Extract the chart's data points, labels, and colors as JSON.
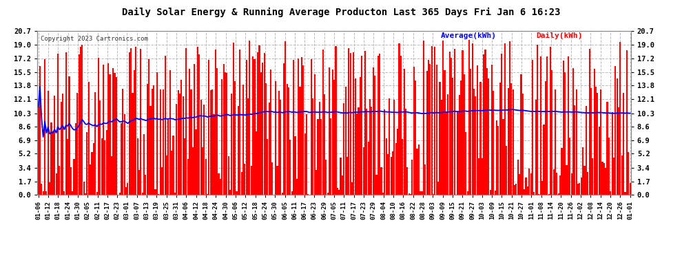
{
  "title": "Daily Solar Energy & Running Average Producton Last 365 Days Fri Jan 6 16:23",
  "copyright": "Copyright 2023 Cartronics.com",
  "legend_avg": "Average(kWh)",
  "legend_daily": "Daily(kWh)",
  "yticks": [
    0.0,
    1.7,
    3.4,
    5.2,
    6.9,
    8.6,
    10.3,
    12.1,
    13.8,
    15.5,
    17.2,
    19.0,
    20.7
  ],
  "ymax": 20.7,
  "ymin": 0.0,
  "bar_color": "#ff0000",
  "avg_color": "#0000ff",
  "bg_color": "#ffffff",
  "grid_color": "#bbbbbb",
  "title_color": "#000000",
  "xtick_labels": [
    "01-06",
    "01-12",
    "01-18",
    "01-24",
    "01-30",
    "02-05",
    "02-11",
    "02-17",
    "02-23",
    "03-01",
    "03-07",
    "03-13",
    "03-19",
    "03-25",
    "03-31",
    "04-06",
    "04-12",
    "04-18",
    "04-24",
    "04-30",
    "05-06",
    "05-12",
    "05-18",
    "05-24",
    "05-30",
    "06-05",
    "06-11",
    "06-17",
    "06-23",
    "06-29",
    "07-05",
    "07-11",
    "07-17",
    "07-23",
    "07-29",
    "08-04",
    "08-10",
    "08-16",
    "08-22",
    "08-28",
    "09-03",
    "09-09",
    "09-15",
    "09-21",
    "09-27",
    "10-03",
    "10-09",
    "10-15",
    "10-21",
    "10-27",
    "11-01",
    "11-08",
    "11-14",
    "11-20",
    "11-26",
    "12-02",
    "12-08",
    "12-14",
    "12-20",
    "12-26",
    "01-01"
  ],
  "num_days": 365,
  "seed": 42,
  "avg_flat_value": 10.3
}
